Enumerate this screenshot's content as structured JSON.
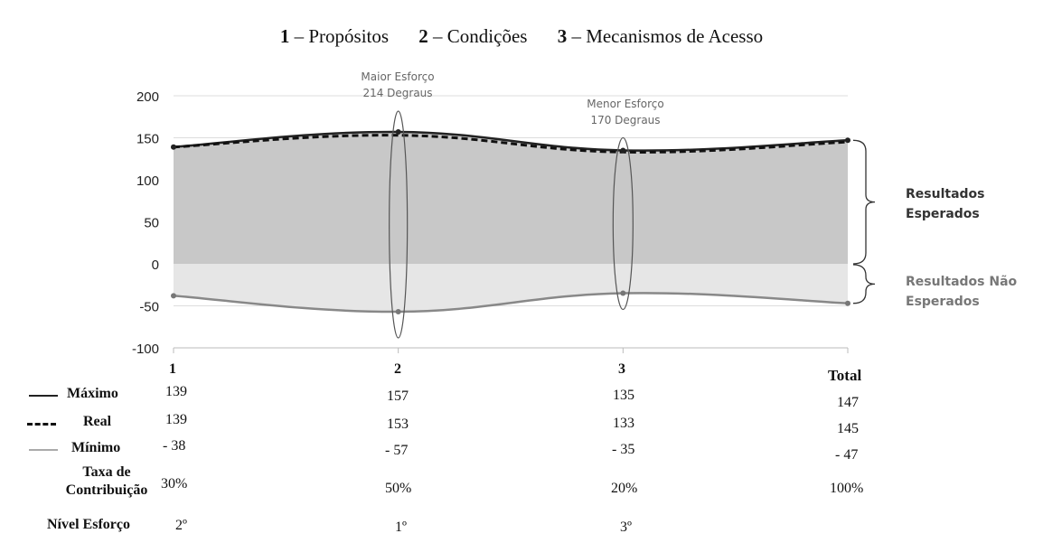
{
  "header": {
    "items": [
      {
        "num": "1",
        "text": " – Propósitos"
      },
      {
        "num": "2",
        "text": " – Condições"
      },
      {
        "num": "3",
        "text": " – Mecanismos de Acesso"
      }
    ]
  },
  "annotations": {
    "max_effort": {
      "line1": "Maior Esforço",
      "line2": "214 Degraus"
    },
    "min_effort": {
      "line1": "Menor Esforço",
      "line2": "170 Degraus"
    },
    "expected": {
      "line1": "Resultados",
      "line2": "Esperados"
    },
    "not_expected": {
      "line1": "Resultados Não",
      "line2": "Esperados"
    }
  },
  "table": {
    "rows": [
      {
        "label": "Máximo",
        "values": [
          "139",
          "157",
          "135",
          "147"
        ]
      },
      {
        "label": "Real",
        "values": [
          "139",
          "153",
          "133",
          "145"
        ]
      },
      {
        "label": "Mínimo",
        "values": [
          "- 38",
          "- 57",
          "- 35",
          "- 47"
        ]
      },
      {
        "label_line1": "Taxa de",
        "label_line2": "Contribuição",
        "values": [
          "30%",
          "50%",
          "20%",
          "100%"
        ]
      },
      {
        "label": "Nível Esforço",
        "values": [
          "2º",
          "1º",
          "3º",
          ""
        ]
      }
    ]
  },
  "chart_data": {
    "type": "area",
    "categories": [
      "1",
      "2",
      "3",
      "Total"
    ],
    "series": [
      {
        "name": "Máximo",
        "values": [
          139,
          157,
          135,
          147
        ]
      },
      {
        "name": "Real",
        "values": [
          139,
          153,
          133,
          145
        ]
      },
      {
        "name": "Mínimo",
        "values": [
          -38,
          -57,
          -35,
          -47
        ]
      }
    ],
    "ylim": [
      -100,
      200
    ],
    "yticks": [
      200,
      150,
      100,
      50,
      0,
      -50,
      -100
    ],
    "grid": true,
    "colors": {
      "max_line": "#222222",
      "real_line": "#111111",
      "min_line": "#888888",
      "upper_fill": "#c8c8c8",
      "lower_fill": "#e6e6e6",
      "grid": "#dddddd"
    }
  }
}
